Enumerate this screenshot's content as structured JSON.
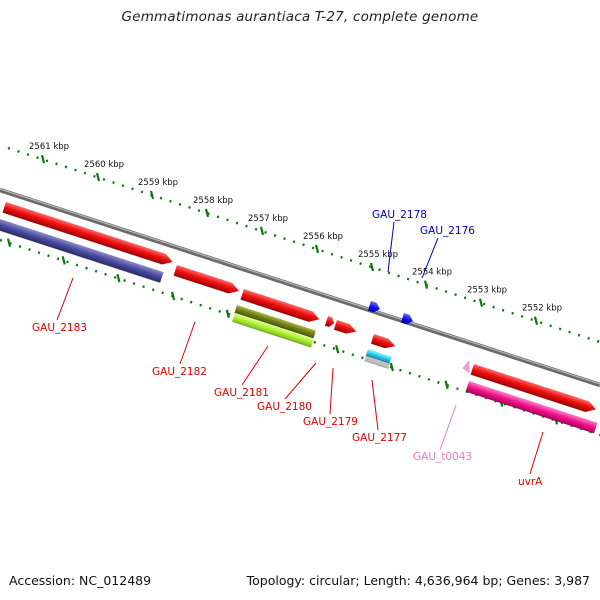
{
  "title": "Gemmatimonas aurantiaca T-27, complete genome",
  "footer": {
    "accession": "Accession: NC_012489",
    "summary": "Topology: circular; Length: 4,636,964 bp; Genes: 3,987"
  },
  "scale_ticks": [
    "2561 kbp",
    "2560 kbp",
    "2559 kbp",
    "2558 kbp",
    "2557 kbp",
    "2556 kbp",
    "2555 kbp",
    "2554 kbp",
    "2553 kbp",
    "2552 kbp"
  ],
  "genes": [
    {
      "name": "GAU_2183",
      "strand": "reverse",
      "color": "#5a5aa8"
    },
    {
      "name": "GAU_2182",
      "strand": "forward",
      "color": "#ee1111"
    },
    {
      "name": "GAU_2181",
      "strand": "forward",
      "color": "#ee1111"
    },
    {
      "name": "GAU_2180",
      "strand": "reverse",
      "color": "#aaee33"
    },
    {
      "name": "GAU_2179",
      "strand": "forward",
      "color": "#ee1111"
    },
    {
      "name": "GAU_2177",
      "strand": "forward",
      "color": "#ee1111"
    },
    {
      "name": "GAU_2178",
      "strand": "forward",
      "color": "#1111ee"
    },
    {
      "name": "GAU_2176",
      "strand": "forward",
      "color": "#1111ee"
    },
    {
      "name": "GAU_t0043",
      "strand": "forward",
      "color": "#f0a0d0"
    },
    {
      "name": "uvrA",
      "strand": "forward",
      "color": "#ee1111"
    }
  ],
  "colors": {
    "cds_red": "#ee1111",
    "reverse_blue": "#5a5aa8",
    "olive": "#7a8a20",
    "lime": "#aaee33",
    "cyan": "#22ccee",
    "blue": "#1111ee",
    "magenta": "#ee1188",
    "pink": "#f0a0d0",
    "backbone": "#888888",
    "tick_green": "#0a7a0a",
    "label_red": "#dd0000",
    "label_blue": "#0000bb",
    "label_pink": "#e67fbf"
  }
}
